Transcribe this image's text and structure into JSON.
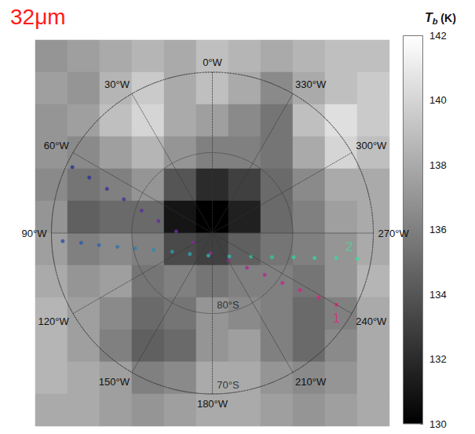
{
  "chart_data": {
    "type": "heatmap",
    "title": "32μm",
    "tick_labels": false,
    "x": [
      -20,
      -16,
      -12,
      -8,
      -4,
      0,
      4,
      8,
      12,
      16,
      20
    ],
    "y": [
      22,
      18,
      14,
      10,
      6,
      2,
      -2,
      -6,
      -10,
      -14,
      -18,
      -22
    ],
    "xlim": [
      -22,
      22
    ],
    "ylim": [
      -24,
      24
    ],
    "values": [
      [
        137,
        137.5,
        138,
        138.5,
        138,
        139,
        138.5,
        138,
        138.5,
        139,
        139
      ],
      [
        137.5,
        137,
        138.5,
        139.5,
        138,
        139,
        138,
        136.5,
        138,
        139,
        139.5
      ],
      [
        137,
        137.5,
        139,
        140,
        138,
        137.5,
        136.5,
        135.5,
        139,
        140.5,
        139.5
      ],
      [
        137,
        136.5,
        137.5,
        138.5,
        137,
        136,
        136,
        135.5,
        138,
        140,
        139
      ],
      [
        136.5,
        135.5,
        136,
        137,
        134,
        132,
        133,
        135,
        136.5,
        138,
        138
      ],
      [
        137,
        134.5,
        135,
        135,
        131,
        130,
        131.5,
        135,
        136,
        137.5,
        138
      ],
      [
        137.5,
        136,
        136.5,
        136,
        133.5,
        133,
        134.5,
        135.5,
        136,
        137,
        138
      ],
      [
        138,
        137,
        137.5,
        135.5,
        136,
        135.5,
        136,
        136,
        135.5,
        137,
        138.5
      ],
      [
        138.5,
        137.5,
        136.5,
        135,
        135.5,
        137,
        136.5,
        136,
        135,
        136,
        138
      ],
      [
        138.5,
        137.5,
        136,
        134.5,
        135,
        137,
        137.5,
        136,
        135,
        136.5,
        138
      ],
      [
        138.5,
        138,
        137.5,
        136,
        136.5,
        138,
        138,
        137,
        136.5,
        137,
        138
      ],
      [
        138,
        138,
        137.5,
        137,
        137.5,
        138,
        138,
        137.5,
        137,
        137.5,
        138
      ]
    ],
    "colorbar": {
      "label": "Tb (K)",
      "range": [
        130,
        142
      ],
      "ticks": [
        130,
        132,
        134,
        136,
        138,
        140,
        142
      ]
    },
    "rlim": [
      -90,
      -70
    ],
    "latitude_circles": [
      {
        "value": -80,
        "label": "80°S"
      },
      {
        "value": -70,
        "label": "70°S"
      }
    ],
    "longitude_lines": [
      {
        "value": 0,
        "label": "0°W"
      },
      {
        "value": 30,
        "label": "30°W"
      },
      {
        "value": 60,
        "label": "60°W"
      },
      {
        "value": 90,
        "label": "90°W"
      },
      {
        "value": 120,
        "label": "120°W"
      },
      {
        "value": 150,
        "label": "150°W"
      },
      {
        "value": 180,
        "label": "180°W"
      },
      {
        "value": 210,
        "label": "210°W"
      },
      {
        "value": 240,
        "label": "240°W"
      },
      {
        "value": 270,
        "label": "270°W"
      },
      {
        "value": 300,
        "label": "300°W"
      },
      {
        "value": 330,
        "label": "330°W"
      }
    ],
    "series": [
      {
        "name": "1",
        "type": "scatter",
        "marker": "circle",
        "x": [
          -17.4,
          -15.3,
          -13.1,
          -11.0,
          -8.8,
          -6.7,
          -4.5,
          -2.4,
          -0.2,
          2.0,
          4.3,
          6.5,
          8.7,
          10.9,
          13.2,
          15.4
        ],
        "y": [
          8.2,
          6.9,
          5.5,
          4.2,
          2.8,
          1.5,
          0.2,
          -1.2,
          -2.5,
          -3.4,
          -4.3,
          -5.2,
          -6.2,
          -7.1,
          -8.0,
          -8.9
        ],
        "colors": [
          "#26338f",
          "#2f3390",
          "#3a3292",
          "#463194",
          "#543096",
          "#622f97",
          "#702e98",
          "#7e2d98",
          "#8c2c97",
          "#9a2b95",
          "#a82a92",
          "#b5298e",
          "#c2288a",
          "#cf2786",
          "#db2682",
          "#e6257e"
        ]
      },
      {
        "name": "2",
        "type": "scatter",
        "marker": "circle",
        "x": [
          -18.6,
          -16.3,
          -14.1,
          -11.8,
          -9.6,
          -7.3,
          -5.0,
          -2.8,
          -0.5,
          2.1,
          4.8,
          7.4,
          10.1,
          12.7,
          15.4,
          18.0
        ],
        "y": [
          -1.0,
          -1.2,
          -1.5,
          -1.7,
          -1.9,
          -2.1,
          -2.3,
          -2.6,
          -2.8,
          -2.9,
          -2.9,
          -3.0,
          -3.0,
          -3.1,
          -3.1,
          -3.2
        ],
        "colors": [
          "#2b4f9e",
          "#2c5aa3",
          "#2d66a8",
          "#2e72ac",
          "#2f7eae",
          "#3089b0",
          "#3195b0",
          "#32a0ae",
          "#33aaab",
          "#34b4a7",
          "#35bda3",
          "#37c59f",
          "#39cd9c",
          "#3bd39a",
          "#3dd899",
          "#3fdc98"
        ]
      }
    ]
  }
}
